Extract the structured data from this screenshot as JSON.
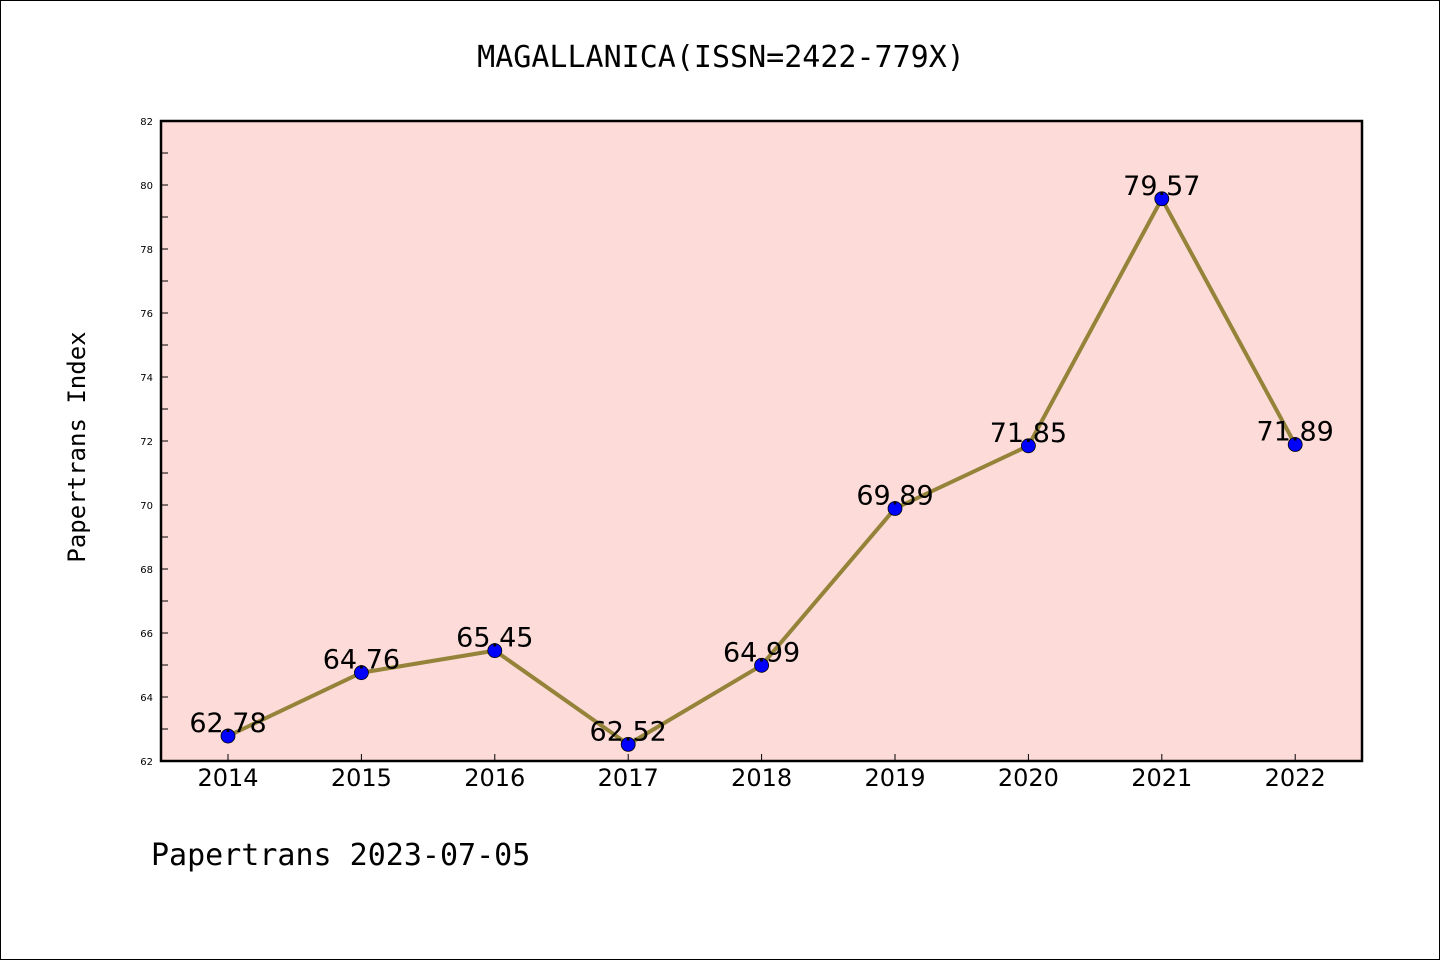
{
  "chart_data": {
    "type": "line",
    "title": "MAGALLANICA(ISSN=2422-779X)",
    "xlabel": "",
    "ylabel": "Papertrans Index",
    "categories": [
      "2014",
      "2015",
      "2016",
      "2017",
      "2018",
      "2019",
      "2020",
      "2021",
      "2022"
    ],
    "series": [
      {
        "values": [
          62.78,
          64.76,
          65.45,
          62.52,
          64.99,
          69.89,
          71.85,
          79.57,
          71.89
        ],
        "labels": [
          "62.78",
          "64.76",
          "65.45",
          "62.52",
          "64.99",
          "69.89",
          "71.85",
          "79.57",
          "71.89"
        ]
      }
    ],
    "ylim": [
      62,
      82
    ],
    "yticks": [
      "62",
      "64",
      "66",
      "68",
      "70",
      "72",
      "74",
      "76",
      "78",
      "80",
      "82"
    ],
    "grid": false,
    "legend": "none",
    "colors": {
      "plot_background": "#fddbd8",
      "line": "#948339",
      "marker": "#0000ff"
    }
  },
  "footer": "Papertrans 2023-07-05"
}
